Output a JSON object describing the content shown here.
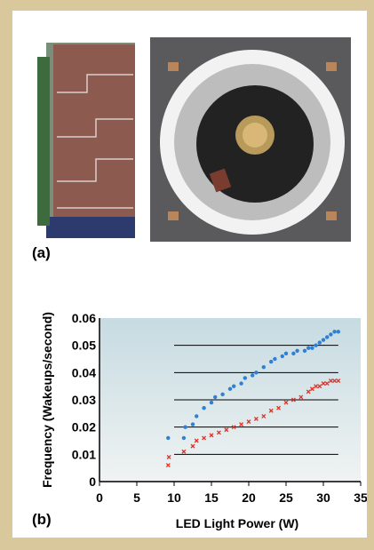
{
  "figure": {
    "panel_a_label": "(a)",
    "panel_b_label": "(b)",
    "photo_a1": "solar cell module",
    "photo_a2": "LED light source with solar cell"
  },
  "chart_data": {
    "type": "scatter",
    "title": "",
    "xlabel": "LED Light Power (W)",
    "ylabel": "Frequency (Wakeups/second)",
    "xlim": [
      0,
      35
    ],
    "ylim": [
      0,
      0.06
    ],
    "xticks": [
      "0",
      "5",
      "10",
      "15",
      "20",
      "25",
      "30",
      "35"
    ],
    "yticks": [
      "0",
      "0.01",
      "0.02",
      "0.03",
      "0.04",
      "0.05",
      "0.06"
    ],
    "grid": true,
    "legend": "none",
    "series": [
      {
        "color": "#2f7fd3",
        "marker": "dot",
        "points": [
          [
            9.2,
            0.016
          ],
          [
            11.3,
            0.016
          ],
          [
            11.5,
            0.02
          ],
          [
            12.5,
            0.021
          ],
          [
            13,
            0.024
          ],
          [
            14,
            0.027
          ],
          [
            15,
            0.029
          ],
          [
            15.5,
            0.031
          ],
          [
            16.5,
            0.032
          ],
          [
            17.5,
            0.034
          ],
          [
            18,
            0.035
          ],
          [
            19,
            0.036
          ],
          [
            19.5,
            0.038
          ],
          [
            20.5,
            0.039
          ],
          [
            21,
            0.04
          ],
          [
            22,
            0.042
          ],
          [
            23,
            0.044
          ],
          [
            23.5,
            0.045
          ],
          [
            24.5,
            0.046
          ],
          [
            25,
            0.047
          ],
          [
            26,
            0.047
          ],
          [
            26.5,
            0.048
          ],
          [
            27.5,
            0.048
          ],
          [
            28,
            0.049
          ],
          [
            28.5,
            0.049
          ],
          [
            29,
            0.05
          ],
          [
            29.5,
            0.051
          ],
          [
            30,
            0.052
          ],
          [
            30.5,
            0.053
          ],
          [
            31,
            0.054
          ],
          [
            31.5,
            0.055
          ],
          [
            32,
            0.055
          ]
        ]
      },
      {
        "color": "#e03025",
        "marker": "cross",
        "points": [
          [
            9.2,
            0.006
          ],
          [
            9.3,
            0.009
          ],
          [
            11.3,
            0.011
          ],
          [
            12.5,
            0.013
          ],
          [
            13,
            0.015
          ],
          [
            14,
            0.016
          ],
          [
            15,
            0.017
          ],
          [
            16,
            0.018
          ],
          [
            17,
            0.019
          ],
          [
            18,
            0.02
          ],
          [
            19,
            0.021
          ],
          [
            20,
            0.022
          ],
          [
            21,
            0.023
          ],
          [
            22,
            0.024
          ],
          [
            23,
            0.026
          ],
          [
            24,
            0.027
          ],
          [
            25,
            0.029
          ],
          [
            26,
            0.03
          ],
          [
            27,
            0.031
          ],
          [
            28,
            0.033
          ],
          [
            28.5,
            0.034
          ],
          [
            29,
            0.035
          ],
          [
            29.5,
            0.035
          ],
          [
            30,
            0.036
          ],
          [
            30.5,
            0.036
          ],
          [
            31,
            0.037
          ],
          [
            31.5,
            0.037
          ],
          [
            32,
            0.037
          ]
        ]
      }
    ]
  }
}
